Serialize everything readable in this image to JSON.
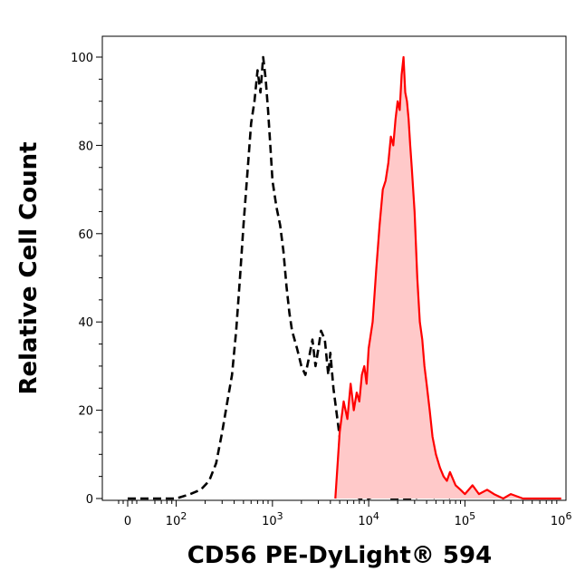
{
  "chart_data": {
    "type": "area",
    "xlabel": "CD56 PE-DyLight® 594",
    "ylabel": "Relative Cell Count",
    "x_scale": "biexponential",
    "x_ticks": [
      {
        "value": 0,
        "base": "0",
        "exp": ""
      },
      {
        "value": 100,
        "base": "10",
        "exp": "2"
      },
      {
        "value": 1000,
        "base": "10",
        "exp": "3"
      },
      {
        "value": 10000,
        "base": "10",
        "exp": "4"
      },
      {
        "value": 100000,
        "base": "10",
        "exp": "5"
      },
      {
        "value": 1000000,
        "base": "10",
        "exp": "6"
      }
    ],
    "y_ticks": [
      "0",
      "20",
      "40",
      "60",
      "80",
      "100"
    ],
    "ylim": [
      0,
      100
    ],
    "grid": false,
    "legend": "none",
    "series": [
      {
        "style": "dashed",
        "color": "#000000",
        "fill": "none",
        "x": [
          0,
          50,
          100,
          140,
          180,
          220,
          260,
          300,
          340,
          380,
          420,
          460,
          500,
          550,
          600,
          650,
          700,
          750,
          800,
          850,
          900,
          950,
          1000,
          1100,
          1200,
          1300,
          1400,
          1500,
          1600,
          1800,
          2000,
          2200,
          2400,
          2600,
          2800,
          3000,
          3200,
          3500,
          3800,
          4000,
          4300,
          4600,
          5000,
          5500,
          6000,
          7000,
          8000,
          10000,
          13000,
          16000,
          20000,
          25000,
          30000,
          40000,
          50000,
          60000,
          70000
        ],
        "y": [
          0,
          0,
          0,
          1,
          2,
          4,
          8,
          15,
          22,
          28,
          38,
          50,
          62,
          74,
          85,
          90,
          97,
          92,
          100,
          95,
          88,
          80,
          72,
          66,
          62,
          56,
          48,
          42,
          38,
          34,
          30,
          28,
          32,
          36,
          30,
          34,
          38,
          36,
          28,
          33,
          25,
          20,
          14,
          8,
          3,
          1,
          0,
          0,
          1,
          0,
          0,
          0,
          0,
          1,
          0,
          1,
          0
        ]
      },
      {
        "style": "solid",
        "color": "#ff0000",
        "fill": "#ffc9c9",
        "x": [
          4500,
          5000,
          5500,
          6000,
          6500,
          7000,
          7500,
          8000,
          8500,
          9000,
          9500,
          10000,
          11000,
          12000,
          13000,
          14000,
          15000,
          16000,
          17000,
          18000,
          19000,
          20000,
          21000,
          22000,
          23000,
          24000,
          25000,
          26000,
          27000,
          28000,
          30000,
          32000,
          34000,
          36000,
          38000,
          40000,
          43000,
          46000,
          50000,
          55000,
          60000,
          65000,
          70000,
          80000,
          90000,
          100000,
          120000,
          140000,
          170000,
          200000,
          250000,
          300000,
          400000,
          500000,
          700000,
          1000000
        ],
        "y": [
          0,
          15,
          22,
          18,
          26,
          20,
          24,
          22,
          28,
          30,
          26,
          34,
          40,
          52,
          62,
          70,
          72,
          76,
          82,
          80,
          86,
          90,
          88,
          96,
          100,
          92,
          90,
          86,
          80,
          75,
          65,
          50,
          40,
          36,
          30,
          26,
          20,
          14,
          10,
          7,
          5,
          4,
          6,
          3,
          2,
          1,
          3,
          1,
          2,
          1,
          0,
          1,
          0,
          0,
          0,
          0
        ]
      }
    ]
  }
}
